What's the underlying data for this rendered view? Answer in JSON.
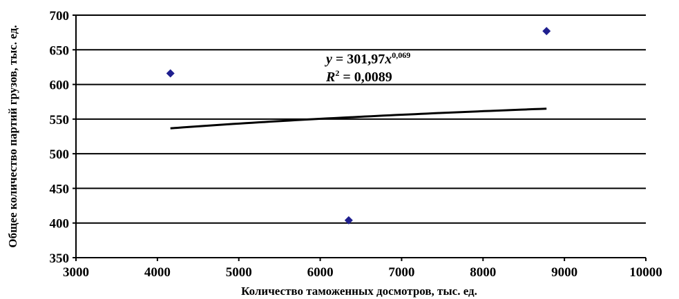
{
  "chart_data": {
    "type": "scatter",
    "xlabel": "Количество таможенных досмотров, тыс. ед.",
    "ylabel": "Общее количество партий грузов, тыс. ед.",
    "xlim": [
      3000,
      10000
    ],
    "ylim": [
      350,
      700
    ],
    "x_ticks": [
      3000,
      4000,
      5000,
      6000,
      7000,
      8000,
      9000,
      10000
    ],
    "y_ticks": [
      350,
      400,
      450,
      500,
      550,
      600,
      650,
      700
    ],
    "grid": "horizontal",
    "legend": "none",
    "marker_color": "#1f1f8f",
    "line_color": "#000000",
    "points": [
      {
        "x": 4160,
        "y": 616
      },
      {
        "x": 6350,
        "y": 404
      },
      {
        "x": 8780,
        "y": 677
      }
    ],
    "trendline": {
      "type": "power",
      "a": 301.97,
      "b": 0.069,
      "x_range": [
        4160,
        8780
      ]
    },
    "annotation": {
      "eq_prefix": "y",
      "eq_middle": " = 301,97",
      "eq_var": "x",
      "eq_exp": "0,069",
      "r2_var": "R",
      "r2_exp": "2",
      "r2_value": " = 0,0089"
    }
  }
}
